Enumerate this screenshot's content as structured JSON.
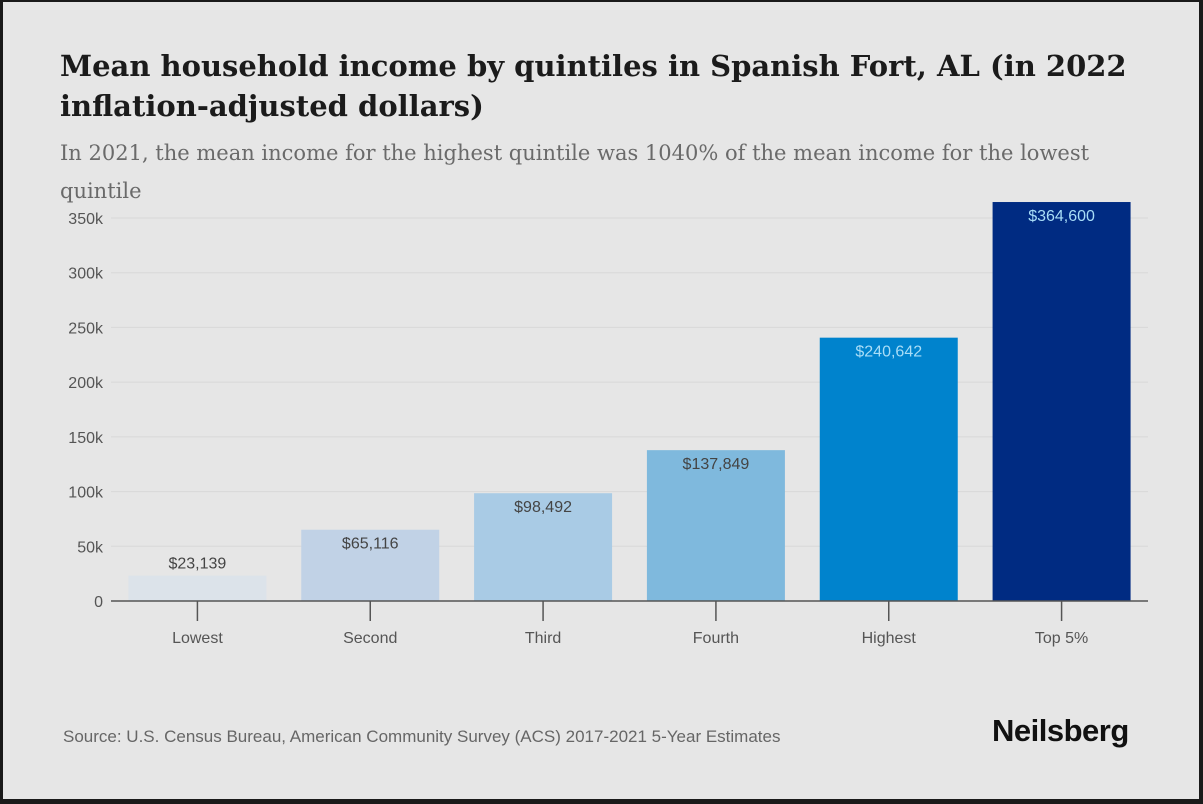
{
  "header": {
    "title": "Mean household income by quintiles in Spanish Fort, AL (in 2022 inflation-adjusted dollars)",
    "subtitle": "In 2021, the mean income for the highest quintile was 1040% of the mean income for the lowest quintile"
  },
  "footer": {
    "source": "Source: U.S. Census Bureau, American Community Survey (ACS) 2017-2021 5-Year Estimates",
    "logo": "Neilsberg"
  },
  "chart_data": {
    "type": "bar",
    "title": "Mean household income by quintiles in Spanish Fort, AL (in 2022 inflation-adjusted dollars)",
    "xlabel": "",
    "ylabel": "",
    "categories": [
      "Lowest",
      "Second",
      "Third",
      "Fourth",
      "Highest",
      "Top 5%"
    ],
    "values": [
      23139,
      65116,
      98492,
      137849,
      240642,
      364600
    ],
    "data_labels": [
      "$23,139",
      "$65,116",
      "$98,492",
      "$137,849",
      "$240,642",
      "$364,600"
    ],
    "colors": [
      "#dce3ea",
      "#c1d2e6",
      "#a9cbe5",
      "#7fb9dd",
      "#0083cd",
      "#002b82"
    ],
    "label_colors": [
      "#444444",
      "#444444",
      "#444444",
      "#444444",
      "#a8ddf7",
      "#a8ddf7"
    ],
    "ylim": [
      0,
      350000
    ],
    "yticks": [
      0,
      50000,
      100000,
      150000,
      200000,
      250000,
      300000,
      350000
    ],
    "ytick_labels": [
      "0",
      "50k",
      "100k",
      "150k",
      "200k",
      "250k",
      "300k",
      "350k"
    ],
    "grid": true,
    "legend": "none"
  }
}
